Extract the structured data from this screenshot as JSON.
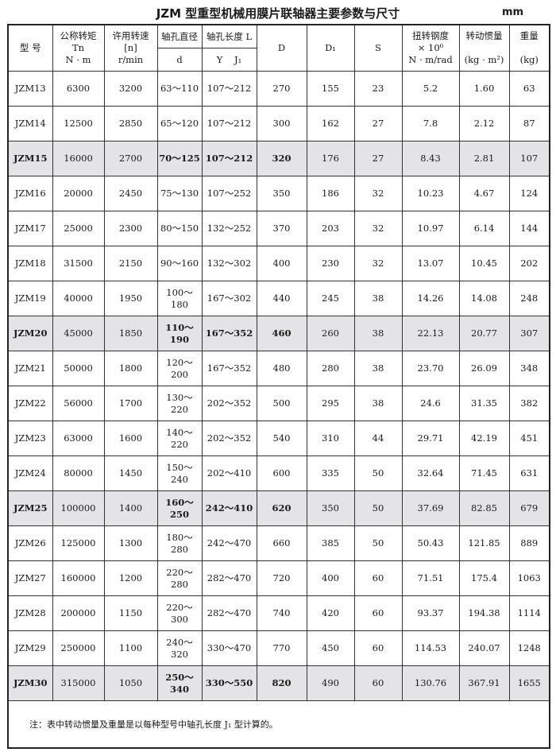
{
  "title": "JZM 型重型机械用膜片联轴器主要参数与尺寸",
  "unit": "mm",
  "header": {
    "model": "型 号",
    "torque": [
      "公称转矩",
      "Tn",
      "N · m"
    ],
    "speed": [
      "许用转速",
      "[n]",
      "r/min"
    ],
    "bore_dia": "轴孔直径",
    "bore_dia_sub": "d",
    "bore_len": "轴孔长度 L",
    "bore_len_sub": "Y    J₁",
    "D": "D",
    "D1": "D₁",
    "S": "S",
    "stiffness": [
      "扭转钢度",
      "× 10⁶",
      "N · m/rad"
    ],
    "inertia": [
      "转动惯量",
      "(kg · m²)"
    ],
    "weight": [
      "重量",
      "(kg)"
    ]
  },
  "highlight_color": "#e4e4e6",
  "rows": [
    {
      "model": "JZM13",
      "torque": "6300",
      "speed": "3200",
      "d": "63～110",
      "L": "107～212",
      "D": "270",
      "D1": "155",
      "S": "23",
      "stiffness": "5.2",
      "inertia": "1.60",
      "weight": "63",
      "highlight": false
    },
    {
      "model": "JZM14",
      "torque": "12500",
      "speed": "2850",
      "d": "65～120",
      "L": "107～212",
      "D": "300",
      "D1": "162",
      "S": "27",
      "stiffness": "7.8",
      "inertia": "2.12",
      "weight": "87",
      "highlight": false
    },
    {
      "model": "JZM15",
      "torque": "16000",
      "speed": "2700",
      "d": "70～125",
      "L": "107～212",
      "D": "320",
      "D1": "176",
      "S": "27",
      "stiffness": "8.43",
      "inertia": "2.81",
      "weight": "107",
      "highlight": true
    },
    {
      "model": "JZM16",
      "torque": "20000",
      "speed": "2450",
      "d": "75～130",
      "L": "107～252",
      "D": "350",
      "D1": "186",
      "S": "32",
      "stiffness": "10.23",
      "inertia": "4.67",
      "weight": "124",
      "highlight": false
    },
    {
      "model": "JZM17",
      "torque": "25000",
      "speed": "2300",
      "d": "80～150",
      "L": "132～252",
      "D": "370",
      "D1": "203",
      "S": "32",
      "stiffness": "10.97",
      "inertia": "6.14",
      "weight": "144",
      "highlight": false
    },
    {
      "model": "JZM18",
      "torque": "31500",
      "speed": "2150",
      "d": "90～160",
      "L": "132～302",
      "D": "400",
      "D1": "230",
      "S": "32",
      "stiffness": "13.07",
      "inertia": "10.45",
      "weight": "202",
      "highlight": false
    },
    {
      "model": "JZM19",
      "torque": "40000",
      "speed": "1950",
      "d": "100～180",
      "L": "167～302",
      "D": "440",
      "D1": "245",
      "S": "38",
      "stiffness": "14.26",
      "inertia": "14.08",
      "weight": "248",
      "highlight": false
    },
    {
      "model": "JZM20",
      "torque": "45000",
      "speed": "1850",
      "d": "110～190",
      "L": "167～352",
      "D": "460",
      "D1": "260",
      "S": "38",
      "stiffness": "22.13",
      "inertia": "20.77",
      "weight": "307",
      "highlight": true
    },
    {
      "model": "JZM21",
      "torque": "50000",
      "speed": "1800",
      "d": "120～200",
      "L": "167～352",
      "D": "480",
      "D1": "280",
      "S": "38",
      "stiffness": "23.70",
      "inertia": "26.09",
      "weight": "348",
      "highlight": false
    },
    {
      "model": "JZM22",
      "torque": "56000",
      "speed": "1700",
      "d": "130～220",
      "L": "202～352",
      "D": "500",
      "D1": "295",
      "S": "38",
      "stiffness": "24.6",
      "inertia": "31.35",
      "weight": "382",
      "highlight": false
    },
    {
      "model": "JZM23",
      "torque": "63000",
      "speed": "1600",
      "d": "140～220",
      "L": "202～352",
      "D": "540",
      "D1": "310",
      "S": "44",
      "stiffness": "29.71",
      "inertia": "42.19",
      "weight": "451",
      "highlight": false
    },
    {
      "model": "JZM24",
      "torque": "80000",
      "speed": "1450",
      "d": "150～240",
      "L": "202～410",
      "D": "600",
      "D1": "335",
      "S": "50",
      "stiffness": "32.64",
      "inertia": "71.45",
      "weight": "631",
      "highlight": false
    },
    {
      "model": "JZM25",
      "torque": "100000",
      "speed": "1400",
      "d": "160～250",
      "L": "242～410",
      "D": "620",
      "D1": "350",
      "S": "50",
      "stiffness": "37.69",
      "inertia": "82.85",
      "weight": "679",
      "highlight": true
    },
    {
      "model": "JZM26",
      "torque": "125000",
      "speed": "1300",
      "d": "180～280",
      "L": "242～470",
      "D": "660",
      "D1": "385",
      "S": "50",
      "stiffness": "50.43",
      "inertia": "121.85",
      "weight": "889",
      "highlight": false
    },
    {
      "model": "JZM27",
      "torque": "160000",
      "speed": "1200",
      "d": "220～280",
      "L": "282～470",
      "D": "720",
      "D1": "400",
      "S": "60",
      "stiffness": "71.51",
      "inertia": "175.4",
      "weight": "1063",
      "highlight": false
    },
    {
      "model": "JZM28",
      "torque": "200000",
      "speed": "1150",
      "d": "220～300",
      "L": "282～470",
      "D": "740",
      "D1": "420",
      "S": "60",
      "stiffness": "93.37",
      "inertia": "194.38",
      "weight": "1114",
      "highlight": false
    },
    {
      "model": "JZM29",
      "torque": "250000",
      "speed": "1100",
      "d": "240～320",
      "L": "330～470",
      "D": "770",
      "D1": "450",
      "S": "60",
      "stiffness": "114.53",
      "inertia": "240.07",
      "weight": "1248",
      "highlight": false
    },
    {
      "model": "JZM30",
      "torque": "315000",
      "speed": "1050",
      "d": "250～340",
      "L": "330～550",
      "D": "820",
      "D1": "490",
      "S": "60",
      "stiffness": "130.76",
      "inertia": "367.91",
      "weight": "1655",
      "highlight": true
    }
  ],
  "note": "注：表中转动惯量及重量是以每种型号中轴孔长度 J₁ 型计算的。"
}
